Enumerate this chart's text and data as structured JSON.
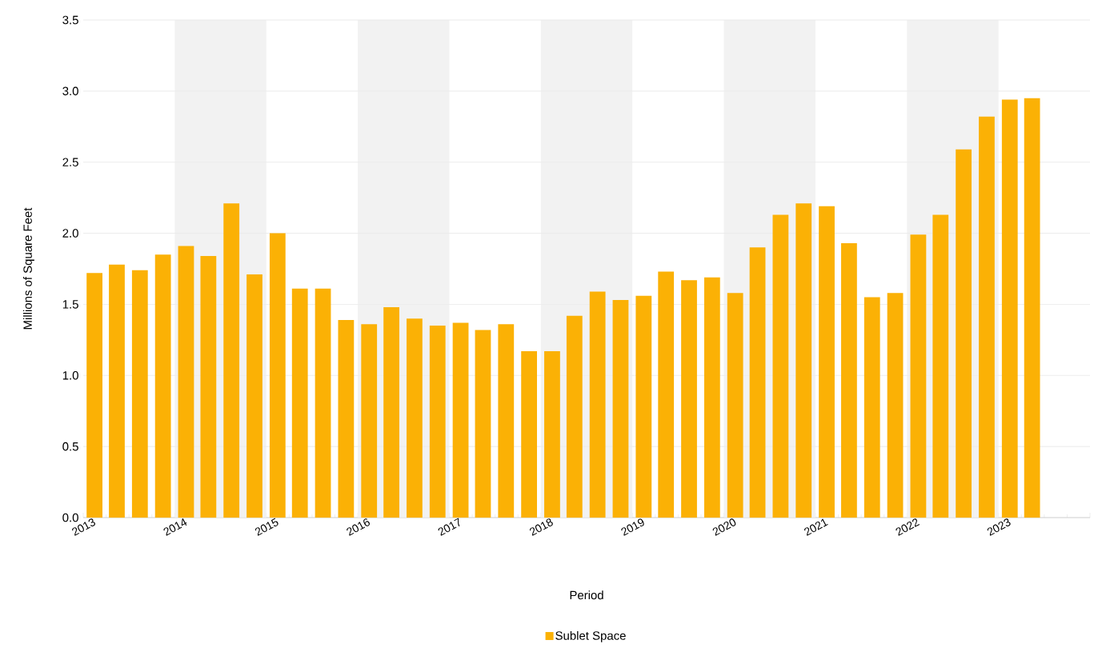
{
  "chart_data": {
    "type": "bar",
    "xlabel": "Period",
    "ylabel": "Millions of Square Feet",
    "x": [
      "2013-02-15",
      "2013-05-15",
      "2013-08-15",
      "2013-11-15",
      "2014-02-15",
      "2014-05-15",
      "2014-08-15",
      "2014-11-15",
      "2015-02-15",
      "2015-05-15",
      "2015-08-15",
      "2015-11-15",
      "2016-02-15",
      "2016-05-15",
      "2016-08-15",
      "2016-11-15",
      "2017-02-15",
      "2017-05-15",
      "2017-08-15",
      "2017-11-15",
      "2018-02-15",
      "2018-05-15",
      "2018-08-15",
      "2018-11-15",
      "2019-02-15",
      "2019-05-15",
      "2019-08-15",
      "2019-11-15",
      "2020-02-15",
      "2020-05-15",
      "2020-08-15",
      "2020-11-15",
      "2021-02-15",
      "2021-05-15",
      "2021-08-15",
      "2021-11-15",
      "2022-02-15",
      "2022-05-15",
      "2022-08-15",
      "2022-11-15",
      "2023-02-15",
      "2023-05-15"
    ],
    "series": [
      {
        "name": "Sublet Space",
        "color": "#fbb105",
        "values": [
          1.72,
          1.78,
          1.74,
          1.85,
          1.91,
          1.84,
          2.21,
          1.71,
          2.0,
          1.61,
          1.61,
          1.39,
          1.36,
          1.48,
          1.4,
          1.35,
          1.37,
          1.32,
          1.36,
          1.17,
          1.17,
          1.42,
          1.59,
          1.53,
          1.56,
          1.73,
          1.67,
          1.69,
          1.58,
          1.9,
          2.13,
          2.21,
          2.19,
          1.93,
          1.55,
          1.58,
          1.99,
          2.13,
          2.59,
          2.82,
          2.94,
          2.95
        ]
      }
    ],
    "xlim": [
      "2013-01-01",
      "2024-01-01"
    ],
    "xticks": [
      {
        "value": "2013-01-01",
        "label": "2013"
      },
      {
        "value": "2014-01-01",
        "label": "2014"
      },
      {
        "value": "2015-01-01",
        "label": "2015"
      },
      {
        "value": "2016-01-01",
        "label": "2016"
      },
      {
        "value": "2017-01-01",
        "label": "2017"
      },
      {
        "value": "2018-01-01",
        "label": "2018"
      },
      {
        "value": "2019-01-01",
        "label": "2019"
      },
      {
        "value": "2020-01-01",
        "label": "2020"
      },
      {
        "value": "2021-01-01",
        "label": "2021"
      },
      {
        "value": "2022-01-01",
        "label": "2022"
      },
      {
        "value": "2023-01-01",
        "label": "2023"
      },
      {
        "value": "2024-01-01",
        "label": null
      }
    ],
    "ylim": [
      0,
      3.5
    ],
    "yticks": [
      {
        "value": 0,
        "label": "0.0"
      },
      {
        "value": 0.5,
        "label": "0.5"
      },
      {
        "value": 1,
        "label": "1.0"
      },
      {
        "value": 1.5,
        "label": "1.5"
      },
      {
        "value": 2,
        "label": "2.0"
      },
      {
        "value": 2.5,
        "label": "2.5"
      },
      {
        "value": 3,
        "label": "3.0"
      },
      {
        "value": 3.5,
        "label": "3.5"
      }
    ],
    "bands": [
      {
        "axis": "x",
        "from": "2014-01-01",
        "to": "2015-01-01",
        "color": "#f2f2f2"
      },
      {
        "axis": "x",
        "from": "2016-01-01",
        "to": "2017-01-01",
        "color": "#f2f2f2"
      },
      {
        "axis": "x",
        "from": "2018-01-01",
        "to": "2019-01-01",
        "color": "#f2f2f2"
      },
      {
        "axis": "x",
        "from": "2020-01-01",
        "to": "2021-01-01",
        "color": "#f2f2f2"
      },
      {
        "axis": "x",
        "from": "2022-01-01",
        "to": "2023-01-01",
        "color": "#f2f2f2"
      }
    ],
    "grid": "y",
    "legend": "bottom"
  }
}
